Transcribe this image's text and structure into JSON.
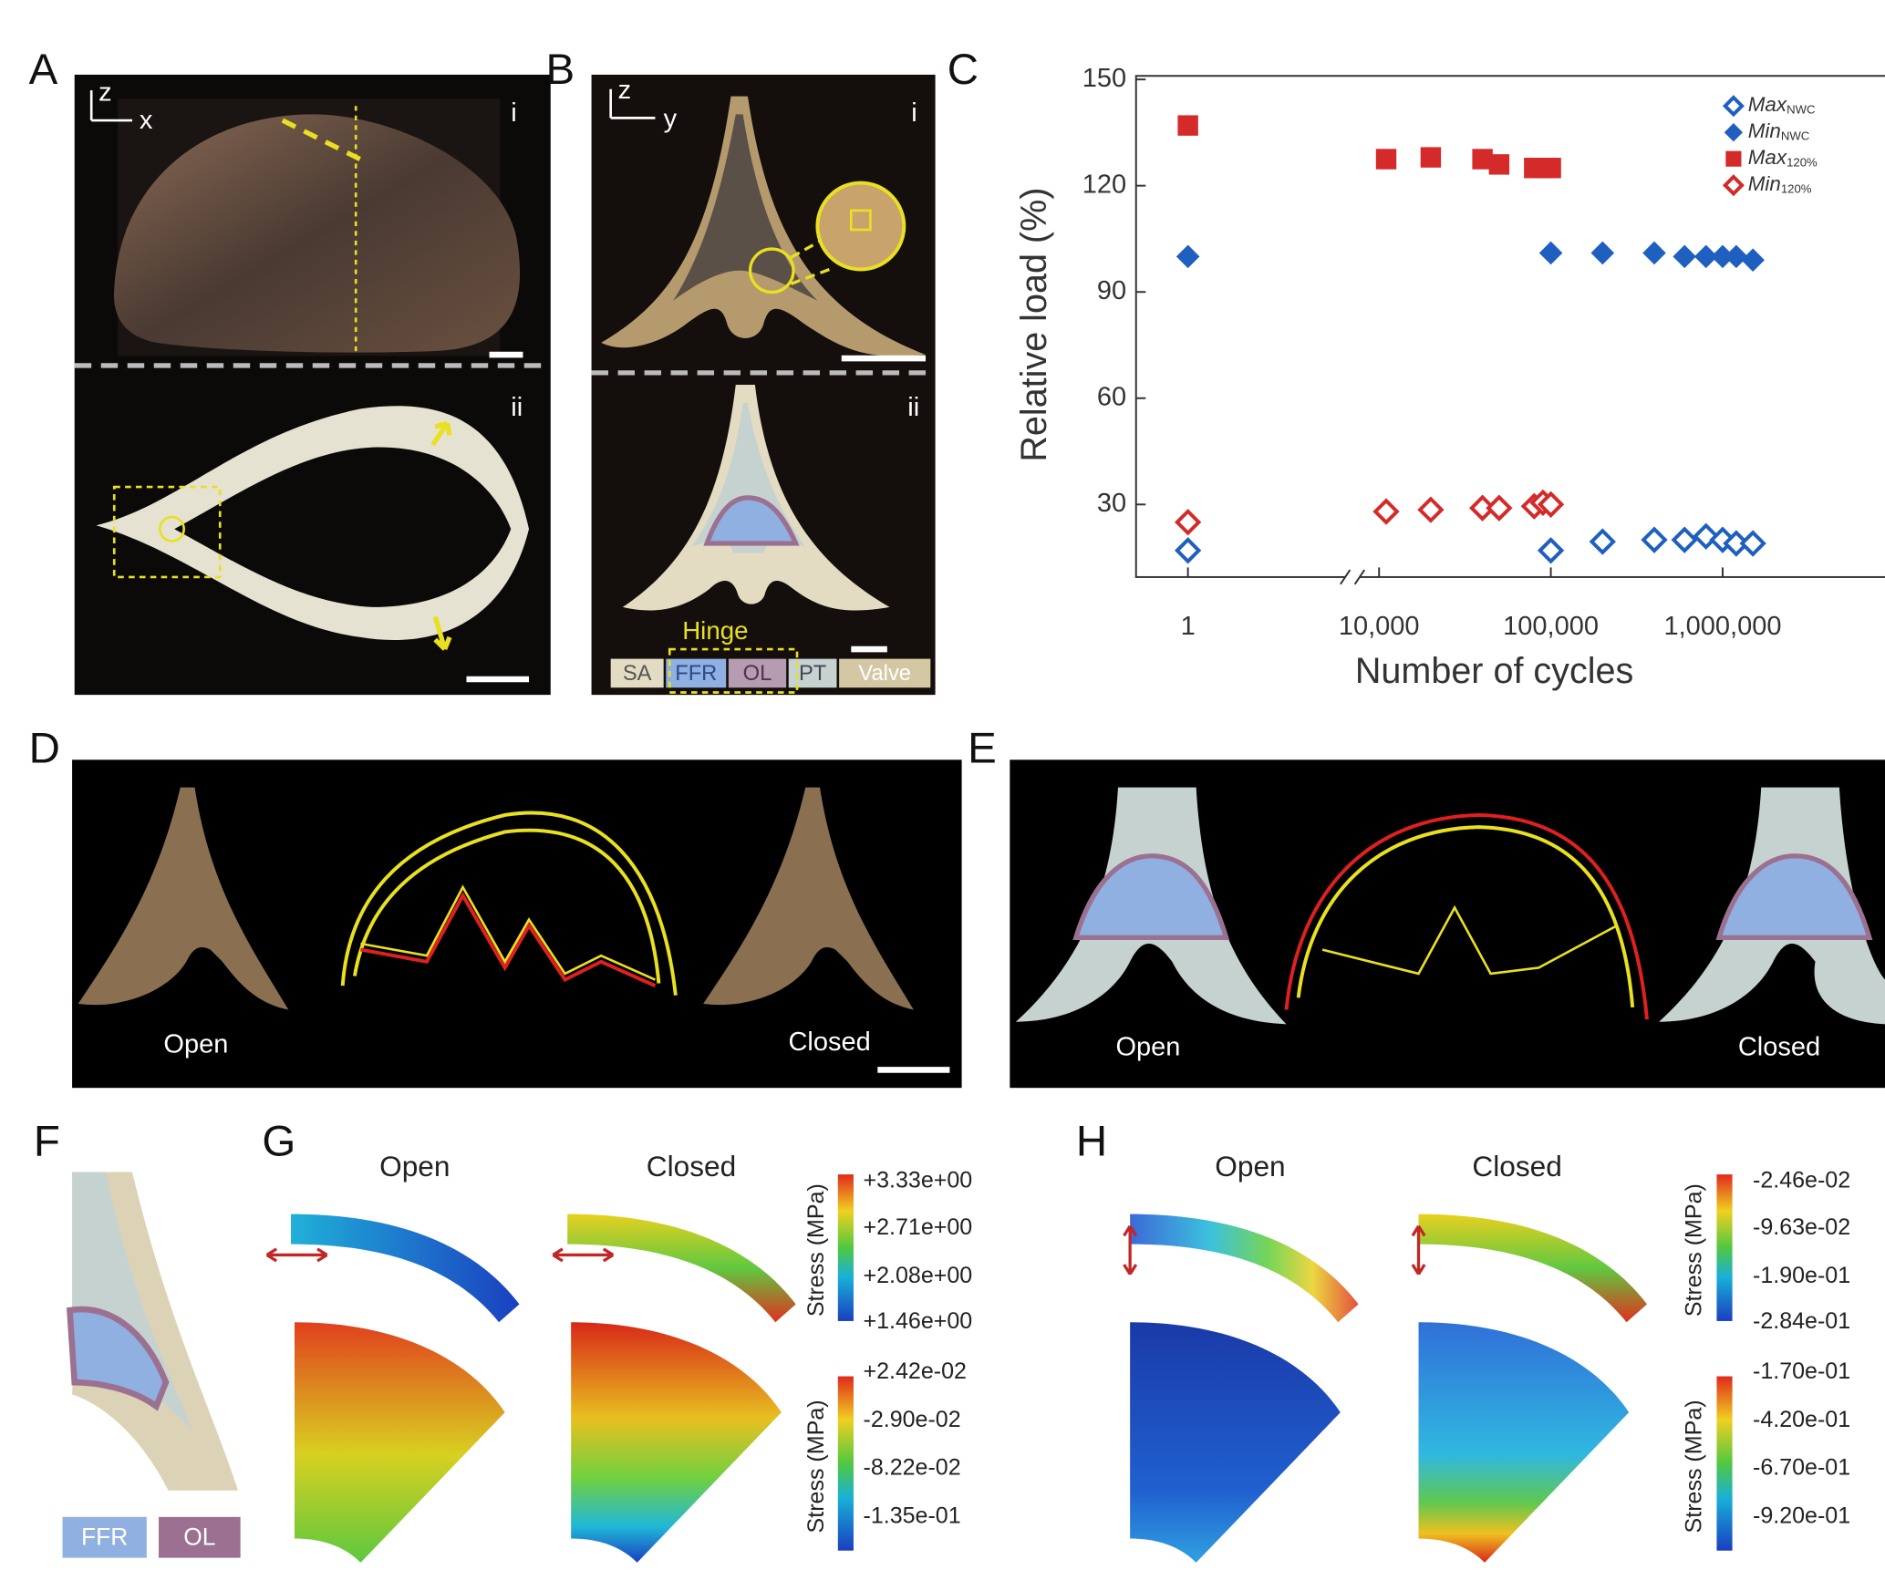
{
  "panels": {
    "A": {
      "label": "A",
      "sub_i": "i",
      "sub_ii": "ii",
      "axis_v": "z",
      "axis_h": "x"
    },
    "B": {
      "label": "B",
      "sub_i": "i",
      "sub_ii": "ii",
      "axis_v": "z",
      "axis_h": "y",
      "hinge": "Hinge",
      "legend": [
        "SA",
        "FFR",
        "OL",
        "PT",
        "Valve"
      ]
    },
    "C": {
      "label": "C"
    },
    "D": {
      "label": "D",
      "open": "Open",
      "closed": "Closed"
    },
    "E": {
      "label": "E",
      "open": "Open",
      "closed": "Closed"
    },
    "F": {
      "label": "F",
      "legend": [
        "FFR",
        "OL"
      ]
    },
    "G": {
      "label": "G",
      "open": "Open",
      "closed": "Closed",
      "bar_title": "Stress (MPa)",
      "bar1": [
        "+3.33e+00",
        "+2.71e+00",
        "+2.08e+00",
        "+1.46e+00"
      ],
      "bar2": [
        "+2.42e-02",
        "-2.90e-02",
        "-8.22e-02",
        "-1.35e-01"
      ]
    },
    "H": {
      "label": "H",
      "open": "Open",
      "closed": "Closed",
      "bar_title": "Stress (MPa)",
      "bar1": [
        "-2.46e-02",
        "-9.63e-02",
        "-1.90e-01",
        "-2.84e-01"
      ],
      "bar2": [
        "-1.70e-01",
        "-4.20e-01",
        "-6.70e-01",
        "-9.20e-01"
      ]
    }
  },
  "chart_data": {
    "type": "scatter",
    "xlabel": "Number of cycles",
    "ylabel": "Relative load (%)",
    "xscale": "log",
    "xlim": [
      0.5,
      8000000
    ],
    "xbreak": [
      9,
      7000
    ],
    "xticks": [
      1,
      {
        "value": 10000,
        "label": "10,000"
      },
      {
        "value": 100000,
        "label": "100,000"
      },
      {
        "value": 1000000,
        "label": "1,000,000"
      }
    ],
    "ylim": [
      9.5,
      151
    ],
    "yticks": [
      30,
      60,
      90,
      120,
      150
    ],
    "legend": "upper right",
    "series": [
      {
        "name": "Max",
        "sub": "NWC",
        "color": "#1f5fbf",
        "marker": "diamond-open",
        "x": [
          1,
          100000,
          200000,
          400000,
          600000,
          800000,
          1000000,
          1200000,
          1500000
        ],
        "values": [
          17,
          17,
          19.5,
          20,
          20,
          21,
          20,
          19,
          19
        ]
      },
      {
        "name": "Min",
        "sub": "NWC",
        "color": "#1f5fbf",
        "marker": "diamond-filled",
        "x": [
          1,
          100000,
          200000,
          400000,
          600000,
          800000,
          1000000,
          1200000,
          1500000
        ],
        "values": [
          100,
          101,
          101,
          101,
          100,
          100,
          100,
          100,
          99
        ]
      },
      {
        "name": "Max",
        "sub": "120%",
        "color": "#d42a2a",
        "marker": "square-filled",
        "x": [
          1,
          11000,
          20000,
          40000,
          50000,
          80000,
          90000,
          100000
        ],
        "values": [
          137,
          127.5,
          128,
          127.5,
          126,
          125,
          125,
          125
        ]
      },
      {
        "name": "Min",
        "sub": "120%",
        "color": "#d42a2a",
        "marker": "diamond-open",
        "x": [
          1,
          11000,
          20000,
          40000,
          50000,
          80000,
          90000,
          100000
        ],
        "values": [
          25,
          28,
          28.5,
          29,
          29,
          29.5,
          30.5,
          30
        ]
      }
    ]
  }
}
